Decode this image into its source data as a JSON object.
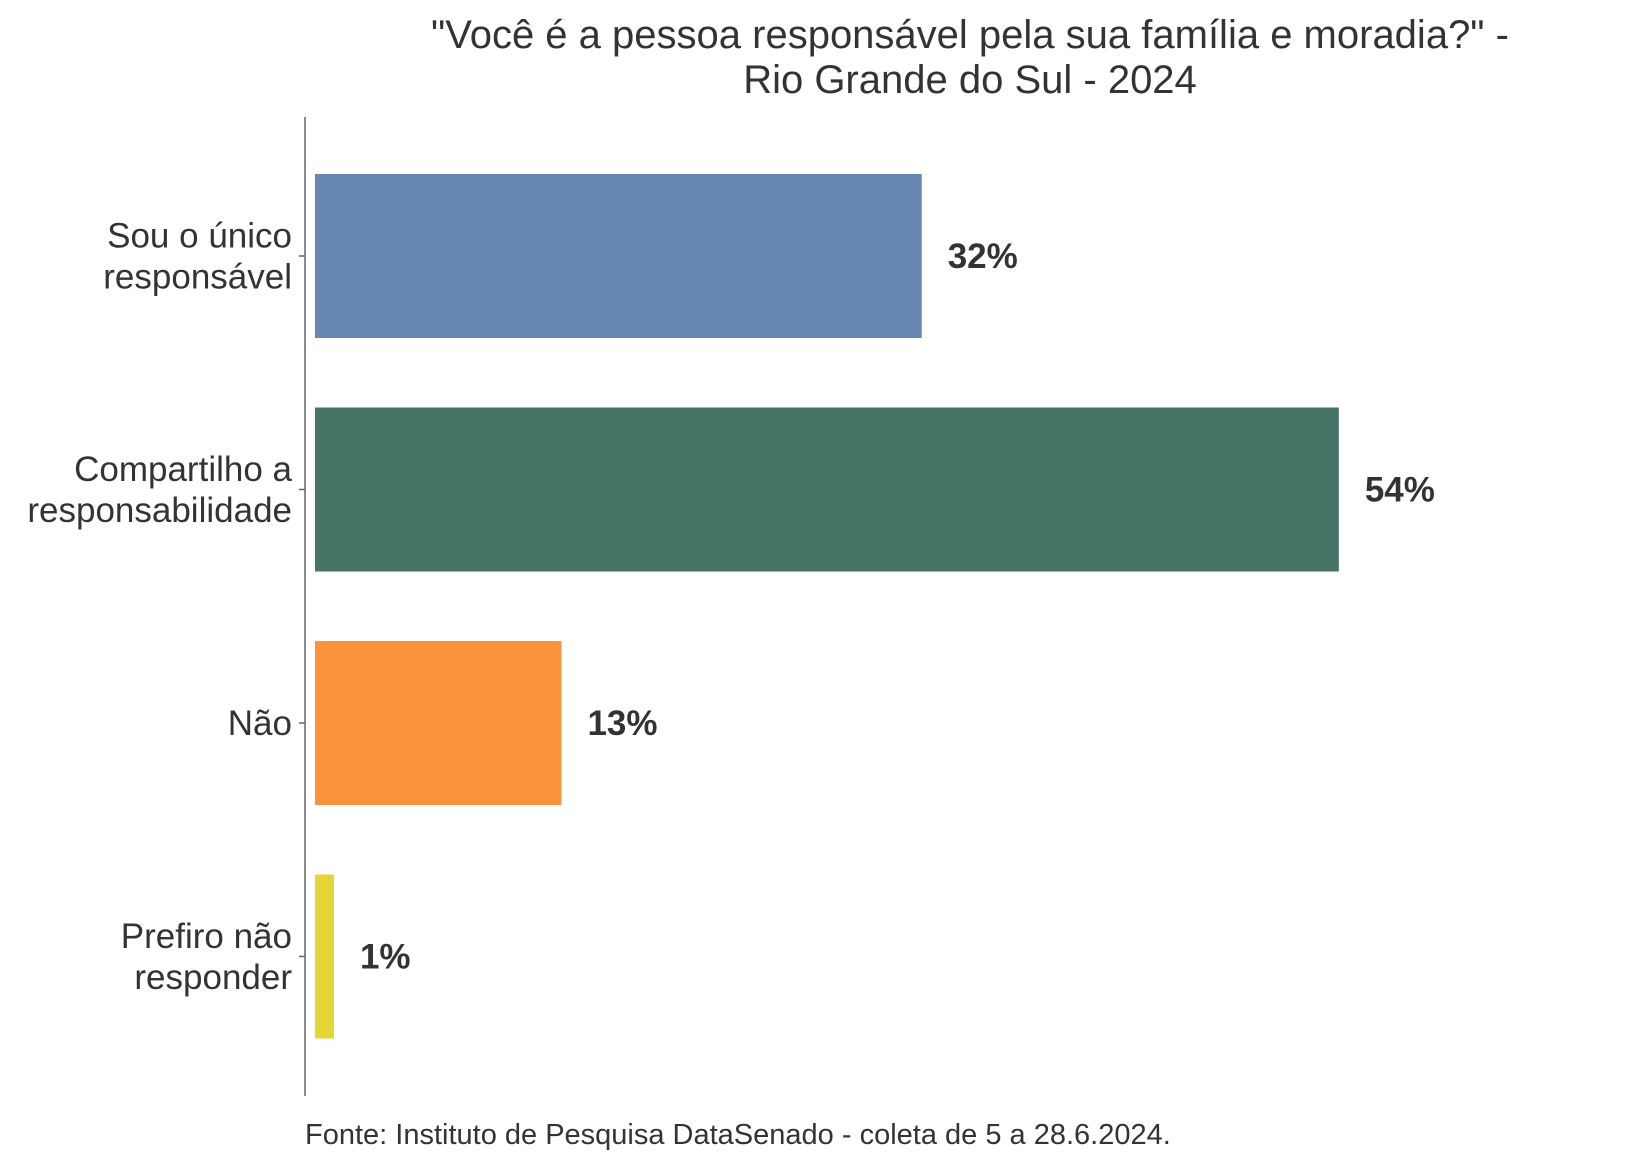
{
  "chart_data": {
    "type": "bar",
    "orientation": "horizontal",
    "title": [
      "\"Você é a pessoa responsável pela sua família e moradia?\" -",
      "Rio Grande do Sul - 2024"
    ],
    "categories": [
      [
        "Sou o único",
        "responsável"
      ],
      [
        "Compartilho a",
        "responsabilidade"
      ],
      [
        "Não"
      ],
      [
        "Prefiro não",
        "responder"
      ]
    ],
    "values": [
      32,
      54,
      13,
      1
    ],
    "value_labels": [
      "32%",
      "54%",
      "13%",
      "1%"
    ],
    "colors": [
      "#6688b0",
      "#467565",
      "#fb923c",
      "#e6d635"
    ],
    "xlim": [
      0,
      60
    ],
    "grid": false,
    "legend": "none",
    "caption": "Fonte: Instituto de Pesquisa DataSenado - coleta de 5 a 28.6.2024."
  }
}
